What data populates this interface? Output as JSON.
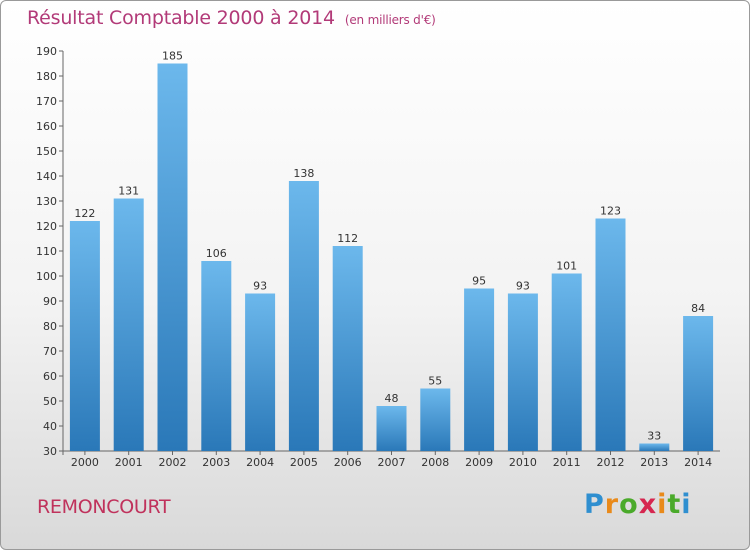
{
  "header": {
    "title": "Résultat Comptable 2000 à 2014",
    "unit": "(en milliers d'€)"
  },
  "footer": {
    "commune": "REMONCOURT",
    "logo_text": "Proxiti"
  },
  "colors": {
    "bar_top": "#6cb8ec",
    "bar_bottom": "#2a78b8",
    "title": "#b23a78"
  },
  "chart_data": {
    "type": "bar",
    "title": "Résultat Comptable 2000 à 2014",
    "subtitle": "(en milliers d'€)",
    "xlabel": "",
    "ylabel": "",
    "categories": [
      "2000",
      "2001",
      "2002",
      "2003",
      "2004",
      "2005",
      "2006",
      "2007",
      "2008",
      "2009",
      "2010",
      "2011",
      "2012",
      "2013",
      "2014"
    ],
    "values": [
      122,
      131,
      185,
      106,
      93,
      138,
      112,
      48,
      55,
      95,
      93,
      101,
      123,
      33,
      84
    ],
    "ylim": [
      30,
      190
    ],
    "yticks": [
      30,
      40,
      50,
      60,
      70,
      80,
      90,
      100,
      110,
      120,
      130,
      140,
      150,
      160,
      170,
      180,
      190
    ],
    "grid": false,
    "legend": "none"
  }
}
